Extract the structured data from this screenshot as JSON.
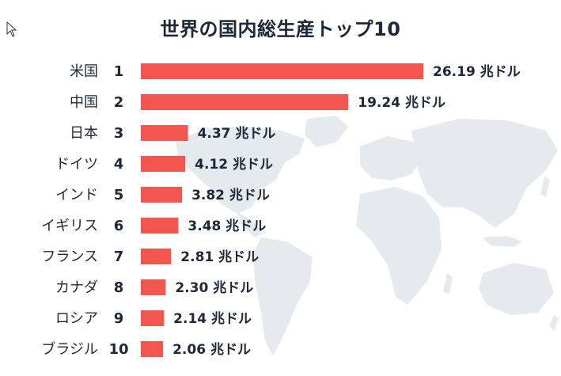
{
  "chart_data": {
    "type": "bar",
    "orientation": "horizontal",
    "title": "世界の国内総生産トップ10",
    "unit": "兆ドル",
    "categories": [
      "米国",
      "中国",
      "日本",
      "ドイツ",
      "インド",
      "イギリス",
      "フランス",
      "カナダ",
      "ロシア",
      "ブラジル"
    ],
    "ranks": [
      "1",
      "2",
      "3",
      "4",
      "5",
      "6",
      "7",
      "8",
      "9",
      "10"
    ],
    "values": [
      26.19,
      19.24,
      4.37,
      4.12,
      3.82,
      3.48,
      2.81,
      2.3,
      2.14,
      2.06
    ],
    "value_labels": [
      "26.19 兆ドル",
      "19.24 兆ドル",
      "4.37 兆ドル",
      "4.12 兆ドル",
      "3.82 兆ドル",
      "3.48 兆ドル",
      "2.81 兆ドル",
      "2.30 兆ドル",
      "2.14 兆ドル",
      "2.06 兆ドル"
    ],
    "bar_color": "#f3554f",
    "background": "world-map",
    "grid": false,
    "legend": "none"
  }
}
